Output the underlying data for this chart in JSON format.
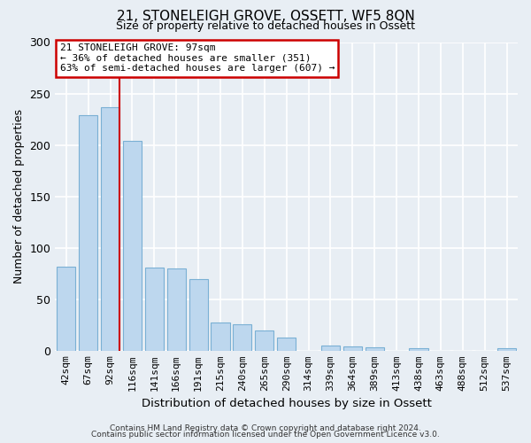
{
  "title": "21, STONELEIGH GROVE, OSSETT, WF5 8QN",
  "subtitle": "Size of property relative to detached houses in Ossett",
  "xlabel": "Distribution of detached houses by size in Ossett",
  "ylabel": "Number of detached properties",
  "bar_labels": [
    "42sqm",
    "67sqm",
    "92sqm",
    "116sqm",
    "141sqm",
    "166sqm",
    "191sqm",
    "215sqm",
    "240sqm",
    "265sqm",
    "290sqm",
    "314sqm",
    "339sqm",
    "364sqm",
    "389sqm",
    "413sqm",
    "438sqm",
    "463sqm",
    "488sqm",
    "512sqm",
    "537sqm"
  ],
  "bar_values": [
    82,
    229,
    237,
    204,
    81,
    80,
    70,
    27,
    26,
    20,
    13,
    0,
    5,
    4,
    3,
    0,
    2,
    0,
    0,
    0,
    2
  ],
  "bar_color": "#bdd7ee",
  "bar_edge_color": "#7ab0d4",
  "bg_color": "#e8eef4",
  "plot_bg_color": "#e8eef4",
  "grid_color": "#ffffff",
  "vline_color": "#cc0000",
  "vline_x_index": 2,
  "annotation_title": "21 STONELEIGH GROVE: 97sqm",
  "annotation_line1": "← 36% of detached houses are smaller (351)",
  "annotation_line2": "63% of semi-detached houses are larger (607) →",
  "annotation_box_color": "#ffffff",
  "annotation_box_edge": "#cc0000",
  "ylim": [
    0,
    300
  ],
  "yticks": [
    0,
    50,
    100,
    150,
    200,
    250,
    300
  ],
  "footer1": "Contains HM Land Registry data © Crown copyright and database right 2024.",
  "footer2": "Contains public sector information licensed under the Open Government Licence v3.0."
}
